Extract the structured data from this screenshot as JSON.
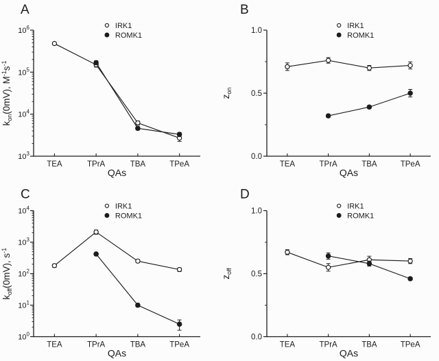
{
  "figure": {
    "background": "#fcfcfc",
    "ink": "#1c1c1c",
    "marker_open_fill": "#fcfcfc",
    "marker_filled_fill": "#1c1c1c"
  },
  "chart_data": [
    {
      "type": "line",
      "panel_letter": "A",
      "xlabel": "QAs",
      "ylabel_tokens": [
        {
          "t": "k"
        },
        {
          "sub": "on"
        },
        {
          "t": "(0mV), M"
        },
        {
          "sup": "-1"
        },
        {
          "t": "s"
        },
        {
          "sup": "-1"
        }
      ],
      "yaxis": {
        "scale": "log",
        "min_exp": 3,
        "max_exp": 6,
        "log_base_label": "10"
      },
      "categories": [
        "TEA",
        "TPrA",
        "TBA",
        "TPeA"
      ],
      "legend": [
        {
          "label": "IRK1",
          "marker": "open"
        },
        {
          "label": "ROMK1",
          "marker": "filled"
        }
      ],
      "series": [
        {
          "name": "IRK1",
          "marker": "open",
          "values": [
            480000,
            150000,
            6200,
            2700
          ],
          "errors": [
            40000,
            18000,
            700,
            450
          ]
        },
        {
          "name": "ROMK1",
          "marker": "filled",
          "values": [
            null,
            168000,
            4600,
            3300
          ],
          "errors": [
            null,
            18000,
            400,
            350
          ]
        }
      ]
    },
    {
      "type": "line",
      "panel_letter": "B",
      "xlabel": "QAs",
      "ylabel_tokens": [
        {
          "t": "z"
        },
        {
          "sub": "on"
        }
      ],
      "yaxis": {
        "scale": "linear",
        "min": 0,
        "max": 1,
        "major": [
          0,
          0.5,
          1
        ],
        "major_labels": [
          "0.0",
          "0.5",
          "1.0"
        ],
        "minor": [
          0.25,
          0.75
        ]
      },
      "categories": [
        "TEA",
        "TPrA",
        "TBA",
        "TPeA"
      ],
      "legend": [
        {
          "label": "IRK1",
          "marker": "open"
        },
        {
          "label": "ROMK1",
          "marker": "filled"
        }
      ],
      "series": [
        {
          "name": "IRK1",
          "marker": "open",
          "values": [
            0.71,
            0.76,
            0.7,
            0.72
          ],
          "errors": [
            0.03,
            0.022,
            0.02,
            0.028
          ]
        },
        {
          "name": "ROMK1",
          "marker": "filled",
          "values": [
            null,
            0.32,
            0.39,
            0.5
          ],
          "errors": [
            null,
            0.012,
            0.012,
            0.03
          ]
        }
      ]
    },
    {
      "type": "line",
      "panel_letter": "C",
      "xlabel": "QAs",
      "ylabel_tokens": [
        {
          "t": "k"
        },
        {
          "sub": "off"
        },
        {
          "t": "(0mV), s"
        },
        {
          "sup": "-1"
        }
      ],
      "yaxis": {
        "scale": "log",
        "min_exp": 0,
        "max_exp": 4,
        "log_base_label": "10"
      },
      "categories": [
        "TEA",
        "TPrA",
        "TBA",
        "TPeA"
      ],
      "legend": [
        {
          "label": "IRK1",
          "marker": "open"
        },
        {
          "label": "ROMK1",
          "marker": "filled"
        }
      ],
      "series": [
        {
          "name": "IRK1",
          "marker": "open",
          "values": [
            180,
            2100,
            250,
            135
          ],
          "errors": [
            22,
            320,
            28,
            18
          ]
        },
        {
          "name": "ROMK1",
          "marker": "filled",
          "values": [
            null,
            420,
            10,
            2.5
          ],
          "errors": [
            null,
            45,
            1.2,
            0.9
          ]
        }
      ]
    },
    {
      "type": "line",
      "panel_letter": "D",
      "xlabel": "QAs",
      "ylabel_tokens": [
        {
          "t": "z"
        },
        {
          "sub": "off"
        }
      ],
      "yaxis": {
        "scale": "linear",
        "min": 0,
        "max": 1,
        "major": [
          0,
          0.5,
          1
        ],
        "major_labels": [
          "0.0",
          "0.5",
          "1.0"
        ],
        "minor": [
          0.25,
          0.75
        ]
      },
      "categories": [
        "TEA",
        "TPrA",
        "TBA",
        "TPeA"
      ],
      "legend": [
        {
          "label": "IRK1",
          "marker": "open"
        },
        {
          "label": "ROMK1",
          "marker": "filled"
        }
      ],
      "series": [
        {
          "name": "IRK1",
          "marker": "open",
          "values": [
            0.67,
            0.55,
            0.61,
            0.6
          ],
          "errors": [
            0.02,
            0.03,
            0.028,
            0.02
          ]
        },
        {
          "name": "ROMK1",
          "marker": "filled",
          "values": [
            null,
            0.64,
            0.58,
            0.46
          ],
          "errors": [
            null,
            0.025,
            0.02,
            0.012
          ]
        }
      ]
    }
  ]
}
